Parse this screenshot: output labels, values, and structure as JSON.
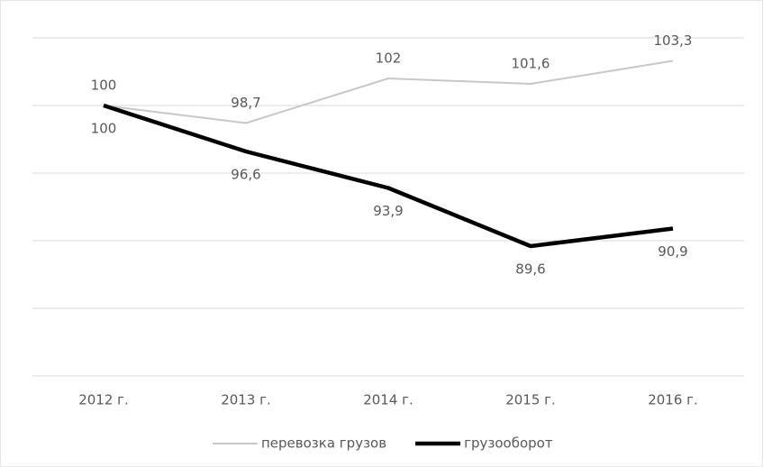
{
  "chart_data": {
    "type": "line",
    "categories": [
      "2012 г.",
      "2013 г.",
      "2014 г.",
      "2015 г.",
      "2016 г."
    ],
    "series": [
      {
        "name": "перевозка грузов",
        "color": "#c8c8c8",
        "values": [
          100,
          98.7,
          102,
          101.6,
          103.3
        ],
        "value_labels": [
          "100",
          "98,7",
          "102",
          "101,6",
          "103,3"
        ],
        "label_position": "above"
      },
      {
        "name": "грузооборот",
        "color": "#000000",
        "values": [
          100,
          96.6,
          93.9,
          89.6,
          90.9
        ],
        "value_labels": [
          "100",
          "96,6",
          "93,9",
          "89,6",
          "90,9"
        ],
        "label_position": "below"
      }
    ],
    "ylim": [
      80,
      105
    ],
    "yticks": [
      80,
      85,
      90,
      95,
      100,
      105
    ],
    "grid": true,
    "legend": "bottom"
  }
}
